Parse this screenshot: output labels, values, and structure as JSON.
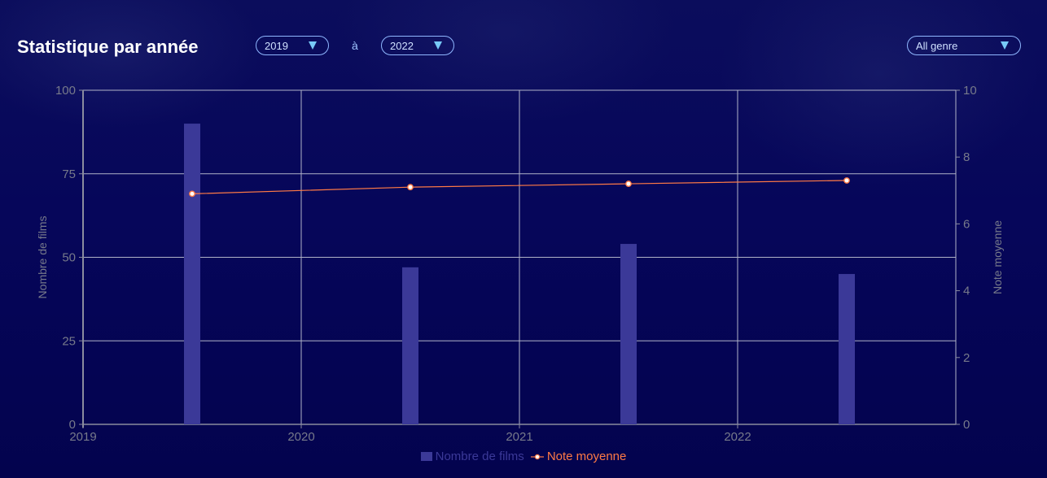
{
  "header": {
    "title": "Statistique par année",
    "from_year": "2019",
    "separator": "à",
    "to_year": "2022",
    "genre": "All genre"
  },
  "colors": {
    "bar": "#3b3998",
    "line": "#ff7a45",
    "grid": "#b0b3c8",
    "axis_text": "#777a8a"
  },
  "chart_data": {
    "type": "bar",
    "x_ticks": [
      "2019",
      "2020",
      "2021",
      "2022"
    ],
    "x_range": [
      2019,
      2023
    ],
    "categories": [
      2019.5,
      2020.5,
      2021.5,
      2022.5
    ],
    "series": [
      {
        "name": "Nombre de films",
        "type": "bar",
        "axis": "left",
        "values": [
          90,
          47,
          54,
          45
        ]
      },
      {
        "name": "Note moyenne",
        "type": "line",
        "axis": "right",
        "values": [
          6.9,
          7.1,
          7.2,
          7.3
        ]
      }
    ],
    "ylabel": "Nombre de films",
    "ylim": [
      0,
      100
    ],
    "yticks": [
      0,
      25,
      50,
      75,
      100
    ],
    "y2label": "Note moyenne",
    "y2lim": [
      0,
      10
    ],
    "y2ticks": [
      0,
      2,
      4,
      6,
      8,
      10
    ],
    "grid": true,
    "legend": "bottom-center"
  }
}
